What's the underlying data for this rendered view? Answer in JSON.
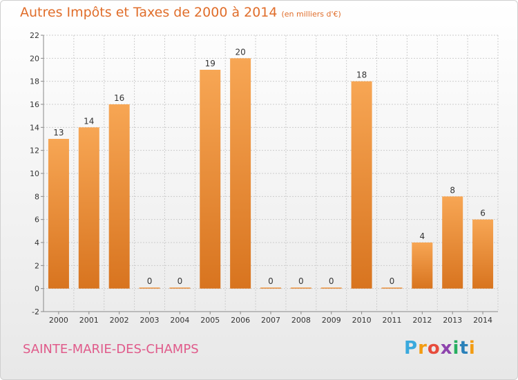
{
  "header": {
    "title": "Autres Impôts et Taxes de 2000 à 2014",
    "unit": "(en milliers d'€)"
  },
  "footer": {
    "commune": "SAINTE-MARIE-DES-CHAMPS",
    "logo_letters": [
      "P",
      "r",
      "o",
      "x",
      "i",
      "t",
      "i"
    ]
  },
  "colors": {
    "bar_top": "#f7a654",
    "bar_bottom": "#d8741f",
    "title": "#e06d2a",
    "commune": "#e05a8a"
  },
  "chart_data": {
    "type": "bar",
    "title": "Autres Impôts et Taxes de 2000 à 2014",
    "subtitle": "(en milliers d'€)",
    "xlabel": "",
    "ylabel": "",
    "categories": [
      "2000",
      "2001",
      "2002",
      "2003",
      "2004",
      "2005",
      "2006",
      "2007",
      "2008",
      "2009",
      "2010",
      "2011",
      "2012",
      "2013",
      "2014"
    ],
    "values": [
      13,
      14,
      16,
      0,
      0,
      19,
      20,
      0,
      0,
      0,
      18,
      0,
      4,
      8,
      6
    ],
    "ylim": [
      -2,
      22
    ],
    "yticks": [
      -2,
      0,
      2,
      4,
      6,
      8,
      10,
      12,
      14,
      16,
      18,
      20,
      22
    ],
    "grid": true,
    "legend": "none"
  }
}
